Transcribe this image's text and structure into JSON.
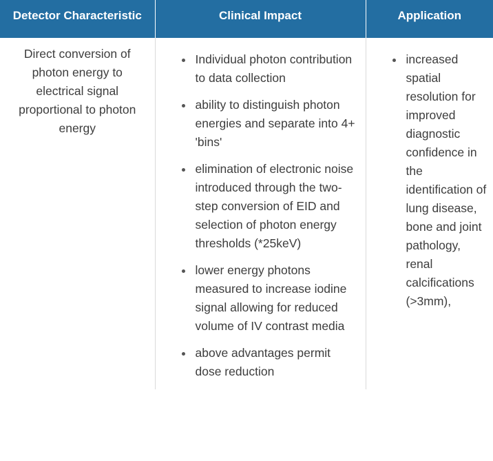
{
  "headers": [
    "Detector Characteristic",
    "Clinical Impact",
    "Application"
  ],
  "row": {
    "characteristic": "Direct conversion of photon energy to electrical signal proportional to photon energy",
    "clinical_impact": [
      "Individual photon contribution to data collection",
      "ability to distinguish photon energies and separate into 4+ 'bins'",
      "elimination of electronic noise introduced through the two-step conversion of EID and selection of photon energy thresholds (*25keV)",
      "lower energy photons measured to increase iodine signal allowing for reduced volume of IV contrast media",
      "above advantages permit dose reduction"
    ],
    "application": [
      "increased spatial resolution for improved diagnostic confidence in the identification of lung disease, bone and joint pathology, renal calcifications (>3mm),"
    ]
  }
}
